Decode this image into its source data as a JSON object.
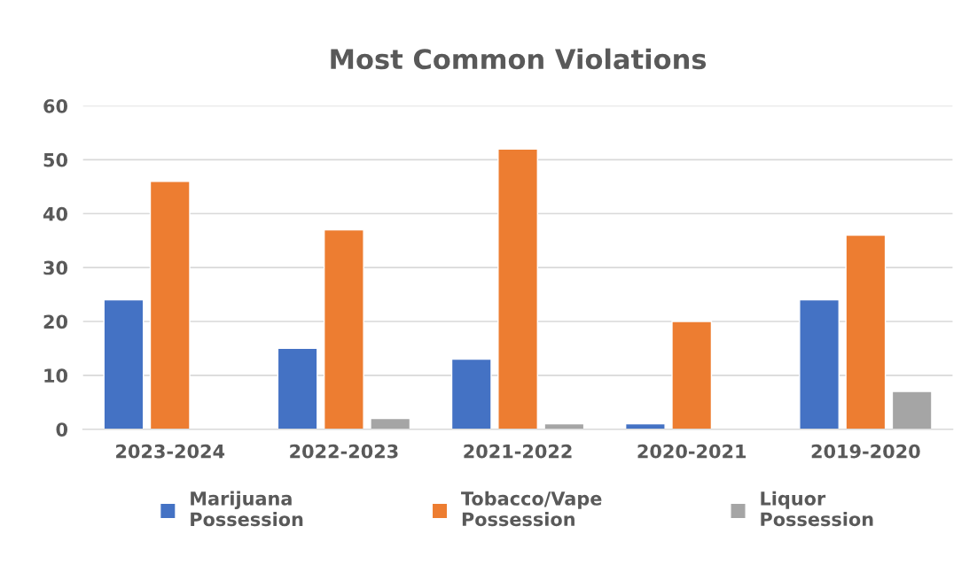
{
  "chart_data": {
    "type": "bar",
    "title": "Most Common Violations",
    "categories": [
      "2023-2024",
      "2022-2023",
      "2021-2022",
      "2020-2021",
      "2019-2020"
    ],
    "series": [
      {
        "name": "Marijuana Possession",
        "color": "#4472c4",
        "values": [
          24,
          15,
          13,
          1,
          24
        ]
      },
      {
        "name": "Tobacco/Vape Possession",
        "color": "#ed7d31",
        "values": [
          46,
          37,
          52,
          20,
          36
        ]
      },
      {
        "name": "Liquor Possession",
        "color": "#a5a5a5",
        "values": [
          null,
          2,
          1,
          null,
          7
        ]
      }
    ],
    "ylim": [
      0,
      60
    ],
    "yticks": [
      0,
      10,
      20,
      30,
      40,
      50,
      60
    ],
    "grid": "y",
    "legend": "bottom"
  }
}
